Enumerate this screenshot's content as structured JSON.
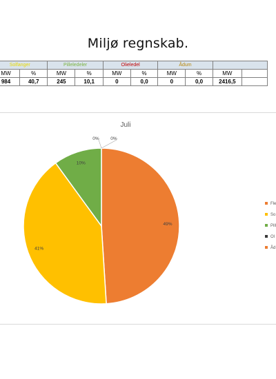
{
  "page_title": "Miljø regnskab.",
  "table": {
    "headers": [
      "Solfanger",
      "Pilleledeler",
      "Olieledel",
      "Ådum",
      ""
    ],
    "header_colors": [
      "#e8d900",
      "#7cb342",
      "#c00000",
      "#b8860b",
      "#000000"
    ],
    "subheaders": [
      "MW",
      "%",
      "MW",
      "%",
      "MW",
      "%",
      "MW",
      "%",
      "MW",
      ""
    ],
    "values": [
      "984",
      "40,7",
      "245",
      "10,1",
      "0",
      "0,0",
      "0",
      "0,0",
      "2416,5",
      ""
    ]
  },
  "chart_data": {
    "type": "pie",
    "title": "Juli",
    "slices": [
      {
        "name": "Fle",
        "value": 49,
        "label": "49%",
        "color": "#ed7d31"
      },
      {
        "name": "So",
        "value": 41,
        "label": "41%",
        "color": "#ffc000"
      },
      {
        "name": "Pill",
        "value": 10,
        "label": "10%",
        "color": "#70ad47"
      },
      {
        "name": "Ol",
        "value": 0,
        "label": "0%",
        "color": "#3a3a3a"
      },
      {
        "name": "Åd",
        "value": 0,
        "label": "0%",
        "color": "#ed7d31"
      }
    ],
    "legend_position": "right"
  }
}
